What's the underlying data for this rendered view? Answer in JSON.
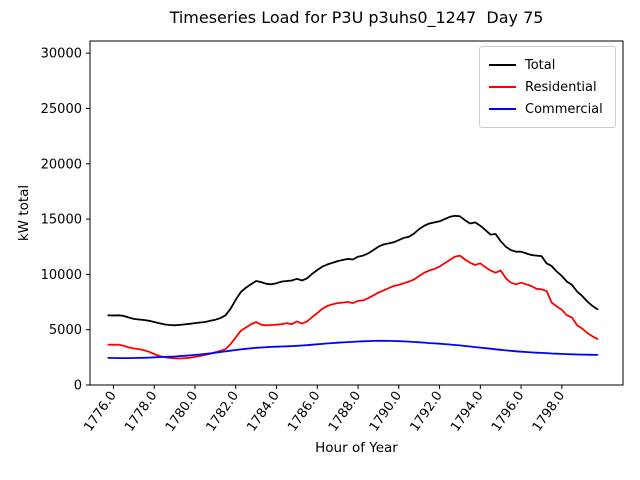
{
  "chart_data": {
    "type": "line",
    "title": "Timeseries Load for P3U p3uhs0_1247  Day 75",
    "xlabel": "Hour of Year",
    "ylabel": "kW total",
    "xlim": [
      1774.85,
      1801.0
    ],
    "ylim": [
      0,
      31100
    ],
    "grid": false,
    "legend_position": "upper right",
    "tick_label_rotation": 55,
    "y_ticks": [
      0,
      5000,
      10000,
      15000,
      20000,
      25000,
      30000
    ],
    "y_tick_labels": [
      "0",
      "5000",
      "10000",
      "15000",
      "20000",
      "25000",
      "30000"
    ],
    "x_ticks": [
      1776,
      1778,
      1780,
      1782,
      1784,
      1786,
      1788,
      1790,
      1792,
      1794,
      1796,
      1798
    ],
    "x_tick_labels": [
      "1776.0",
      "1778.0",
      "1780.0",
      "1782.0",
      "1784.0",
      "1786.0",
      "1788.0",
      "1790.0",
      "1792.0",
      "1794.0",
      "1796.0",
      "1798.0"
    ],
    "x": [
      1775.75,
      1776.0,
      1776.25,
      1776.5,
      1776.75,
      1777.0,
      1777.25,
      1777.5,
      1777.75,
      1778.0,
      1778.25,
      1778.5,
      1778.75,
      1779.0,
      1779.25,
      1779.5,
      1779.75,
      1780.0,
      1780.25,
      1780.5,
      1780.75,
      1781.0,
      1781.25,
      1781.5,
      1781.75,
      1782.0,
      1782.25,
      1782.5,
      1782.75,
      1783.0,
      1783.25,
      1783.5,
      1783.75,
      1784.0,
      1784.25,
      1784.5,
      1784.75,
      1785.0,
      1785.25,
      1785.5,
      1785.75,
      1786.0,
      1786.25,
      1786.5,
      1786.75,
      1787.0,
      1787.25,
      1787.5,
      1787.75,
      1788.0,
      1788.25,
      1788.5,
      1788.75,
      1789.0,
      1789.25,
      1789.5,
      1789.75,
      1790.0,
      1790.25,
      1790.5,
      1790.75,
      1791.0,
      1791.25,
      1791.5,
      1791.75,
      1792.0,
      1792.25,
      1792.5,
      1792.75,
      1793.0,
      1793.25,
      1793.5,
      1793.75,
      1794.0,
      1794.25,
      1794.5,
      1794.75,
      1795.0,
      1795.25,
      1795.5,
      1795.75,
      1796.0,
      1796.25,
      1796.5,
      1796.75,
      1797.0,
      1797.25,
      1797.5,
      1797.75,
      1798.0,
      1798.25,
      1798.5,
      1798.75,
      1799.0,
      1799.25,
      1799.5,
      1799.75
    ],
    "series": [
      {
        "name": "Total",
        "color": "#000000",
        "values": [
          6300,
          6280,
          6300,
          6250,
          6100,
          5980,
          5920,
          5880,
          5800,
          5700,
          5580,
          5480,
          5420,
          5400,
          5430,
          5480,
          5530,
          5600,
          5650,
          5700,
          5800,
          5900,
          6050,
          6300,
          6900,
          7700,
          8400,
          8800,
          9100,
          9400,
          9300,
          9150,
          9100,
          9200,
          9350,
          9400,
          9450,
          9600,
          9450,
          9650,
          10050,
          10400,
          10700,
          10900,
          11050,
          11200,
          11300,
          11400,
          11350,
          11600,
          11700,
          11900,
          12200,
          12500,
          12700,
          12800,
          12900,
          13100,
          13300,
          13400,
          13700,
          14100,
          14400,
          14600,
          14700,
          14800,
          15000,
          15200,
          15300,
          15250,
          14900,
          14600,
          14700,
          14400,
          14000,
          13600,
          13650,
          13000,
          12500,
          12200,
          12050,
          12050,
          11900,
          11750,
          11700,
          11650,
          11000,
          10750,
          10250,
          9850,
          9350,
          9050,
          8450,
          8050,
          7550,
          7150,
          6850
        ]
      },
      {
        "name": "Residential",
        "color": "#ff0000",
        "values": [
          3650,
          3630,
          3650,
          3550,
          3400,
          3300,
          3250,
          3150,
          3000,
          2800,
          2620,
          2520,
          2450,
          2420,
          2400,
          2420,
          2470,
          2540,
          2620,
          2720,
          2830,
          2960,
          3080,
          3250,
          3700,
          4300,
          4900,
          5200,
          5500,
          5700,
          5450,
          5400,
          5420,
          5450,
          5500,
          5600,
          5500,
          5750,
          5550,
          5750,
          6150,
          6500,
          6900,
          7150,
          7300,
          7400,
          7450,
          7500,
          7400,
          7600,
          7650,
          7850,
          8100,
          8350,
          8550,
          8750,
          8950,
          9050,
          9200,
          9350,
          9550,
          9850,
          10150,
          10350,
          10500,
          10700,
          11000,
          11300,
          11600,
          11700,
          11350,
          11050,
          10850,
          11000,
          10650,
          10350,
          10150,
          10350,
          9650,
          9250,
          9100,
          9250,
          9100,
          8950,
          8700,
          8650,
          8500,
          7450,
          7100,
          6800,
          6300,
          6100,
          5400,
          5100,
          4700,
          4400,
          4150
        ]
      },
      {
        "name": "Commercial",
        "color": "#0000ff",
        "values": [
          2450,
          2440,
          2430,
          2430,
          2430,
          2440,
          2450,
          2460,
          2480,
          2500,
          2520,
          2540,
          2560,
          2580,
          2610,
          2640,
          2680,
          2720,
          2760,
          2810,
          2860,
          2920,
          2980,
          3040,
          3100,
          3160,
          3220,
          3270,
          3320,
          3360,
          3390,
          3420,
          3440,
          3460,
          3480,
          3500,
          3520,
          3540,
          3570,
          3600,
          3640,
          3680,
          3720,
          3760,
          3790,
          3820,
          3850,
          3880,
          3900,
          3930,
          3950,
          3970,
          3990,
          4000,
          4000,
          3990,
          3980,
          3960,
          3940,
          3920,
          3890,
          3860,
          3830,
          3790,
          3760,
          3730,
          3700,
          3660,
          3620,
          3580,
          3530,
          3480,
          3430,
          3380,
          3330,
          3280,
          3230,
          3180,
          3130,
          3090,
          3050,
          3010,
          2980,
          2950,
          2920,
          2900,
          2880,
          2850,
          2830,
          2810,
          2790,
          2780,
          2760,
          2750,
          2740,
          2730,
          2720
        ]
      }
    ]
  }
}
